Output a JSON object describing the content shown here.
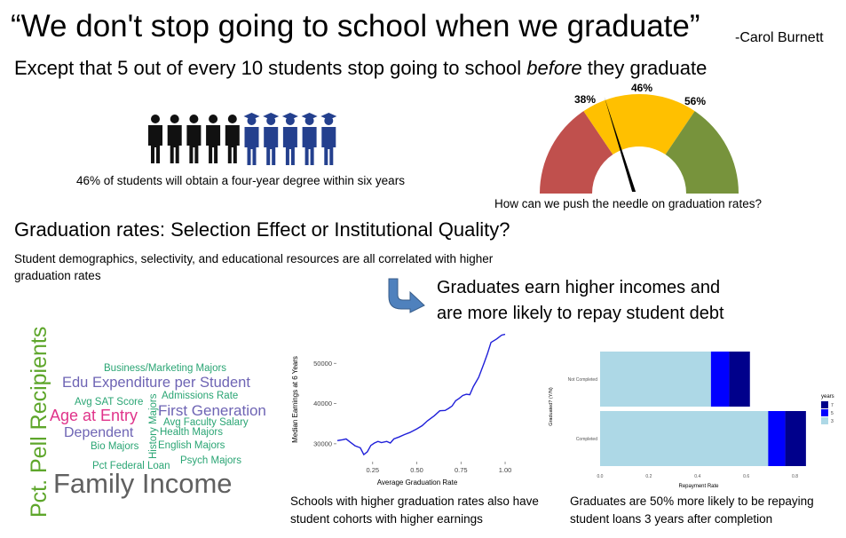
{
  "header": {
    "quote": "“We don't stop going to school when we graduate”",
    "author": "-Carol Burnett",
    "subtitle_pre": "Except that 5 out of every 10 students stop going to school ",
    "subtitle_em": "before",
    "subtitle_post": " they graduate"
  },
  "students": {
    "caption": "46% of students will obtain a four-year degree within six years",
    "total": 10,
    "graduates": 5,
    "colors": {
      "non_grad": "#111111",
      "grad": "#24408e"
    }
  },
  "gauge": {
    "labels": [
      "38%",
      "46%",
      "56%"
    ],
    "caption": "How can we push the needle on graduation rates?",
    "value": 46,
    "colors": {
      "low": "#c0504d",
      "mid": "#ffc000",
      "high": "#77933c",
      "needle": "#000000"
    }
  },
  "section": {
    "heading": "Graduation rates: Selection Effect or Institutional Quality?",
    "body": "Student demographics, selectivity, and educational resources are all correlated with higher graduation rates",
    "callout_line1": "Graduates earn higher incomes and",
    "callout_line2": "are more likely to repay student debt"
  },
  "wordcloud": {
    "words": [
      {
        "text": "Pct. Pell Recipients",
        "color": "#5ea62b"
      },
      {
        "text": "Business/Marketing Majors",
        "color": "#2aa574"
      },
      {
        "text": "Edu Expenditure per Student",
        "color": "#6e64b4"
      },
      {
        "text": "Admissions Rate",
        "color": "#2aa574"
      },
      {
        "text": "Avg SAT Score",
        "color": "#2aa574"
      },
      {
        "text": "First Generation",
        "color": "#6e64b4"
      },
      {
        "text": "Age at Entry",
        "color": "#e0338a"
      },
      {
        "text": "Avg Faculty Salary",
        "color": "#2aa574"
      },
      {
        "text": "Health Majors",
        "color": "#2aa574"
      },
      {
        "text": "Dependent",
        "color": "#6e64b4"
      },
      {
        "text": "History Majors",
        "color": "#2aa574"
      },
      {
        "text": "Bio Majors",
        "color": "#2aa574"
      },
      {
        "text": "English Majors",
        "color": "#2aa574"
      },
      {
        "text": "Psych Majors",
        "color": "#2aa574"
      },
      {
        "text": "Pct Federal Loan",
        "color": "#2aa574"
      },
      {
        "text": "Family Income",
        "color": "#606060"
      }
    ]
  },
  "chart_data": [
    {
      "type": "line",
      "title": "",
      "xlabel": "Average Graduation Rate",
      "ylabel": "Median Earnings at 6 Years",
      "xlim": [
        0.05,
        1.03
      ],
      "ylim": [
        26000,
        58000
      ],
      "xticks": [
        "0.25",
        "0.50",
        "0.75",
        "1.00"
      ],
      "xtick_values": [
        0.25,
        0.5,
        0.75,
        1.0
      ],
      "yticks": [
        "30000",
        "40000",
        "50000"
      ],
      "ytick_values": [
        30000,
        40000,
        50000
      ],
      "color": "#1f1fd9",
      "x": [
        0.05,
        0.08,
        0.1,
        0.12,
        0.15,
        0.18,
        0.2,
        0.22,
        0.24,
        0.26,
        0.28,
        0.3,
        0.33,
        0.35,
        0.37,
        0.4,
        0.43,
        0.46,
        0.5,
        0.53,
        0.56,
        0.6,
        0.63,
        0.66,
        0.68,
        0.7,
        0.72,
        0.74,
        0.76,
        0.78,
        0.8,
        0.82,
        0.85,
        0.88,
        0.9,
        0.92,
        0.95,
        0.98,
        1.0
      ],
      "y": [
        30800,
        31000,
        31200,
        30500,
        29500,
        29000,
        27300,
        28000,
        29600,
        30200,
        30600,
        30300,
        30600,
        30200,
        31200,
        31700,
        32300,
        32800,
        33700,
        34500,
        35700,
        37000,
        38200,
        38300,
        38800,
        39400,
        40700,
        41300,
        42000,
        42300,
        42200,
        44200,
        46500,
        50000,
        52400,
        55200,
        56000,
        57000,
        57200
      ]
    },
    {
      "type": "bar",
      "orientation": "horizontal",
      "stacked": true,
      "title": "",
      "xlabel": "Repayment Rate",
      "ylabel": "Graduated? (Y/N)",
      "categories": [
        "Not Completed",
        "Completed"
      ],
      "xlim": [
        0,
        0.86
      ],
      "xticks": [
        "0.0",
        "0.2",
        "0.4",
        "0.6",
        "0.8"
      ],
      "xtick_values": [
        0,
        0.2,
        0.4,
        0.6,
        0.8
      ],
      "legend_title": "years",
      "legend_position": "right",
      "series": [
        {
          "name": "3",
          "color": "#add8e6",
          "values": [
            0.455,
            0.69
          ]
        },
        {
          "name": "5",
          "color": "#0000ff",
          "values": [
            0.075,
            0.07
          ]
        },
        {
          "name": "7",
          "color": "#00008b",
          "values": [
            0.085,
            0.085
          ]
        }
      ],
      "legend_order": [
        "7",
        "5",
        "3"
      ]
    }
  ],
  "captions": {
    "line_chart_1": "Schools with higher graduation rates also have",
    "line_chart_2": "student cohorts with higher earnings",
    "bar_chart_1": "Graduates are 50% more likely to be repaying",
    "bar_chart_2": "student loans 3 years after completion"
  }
}
